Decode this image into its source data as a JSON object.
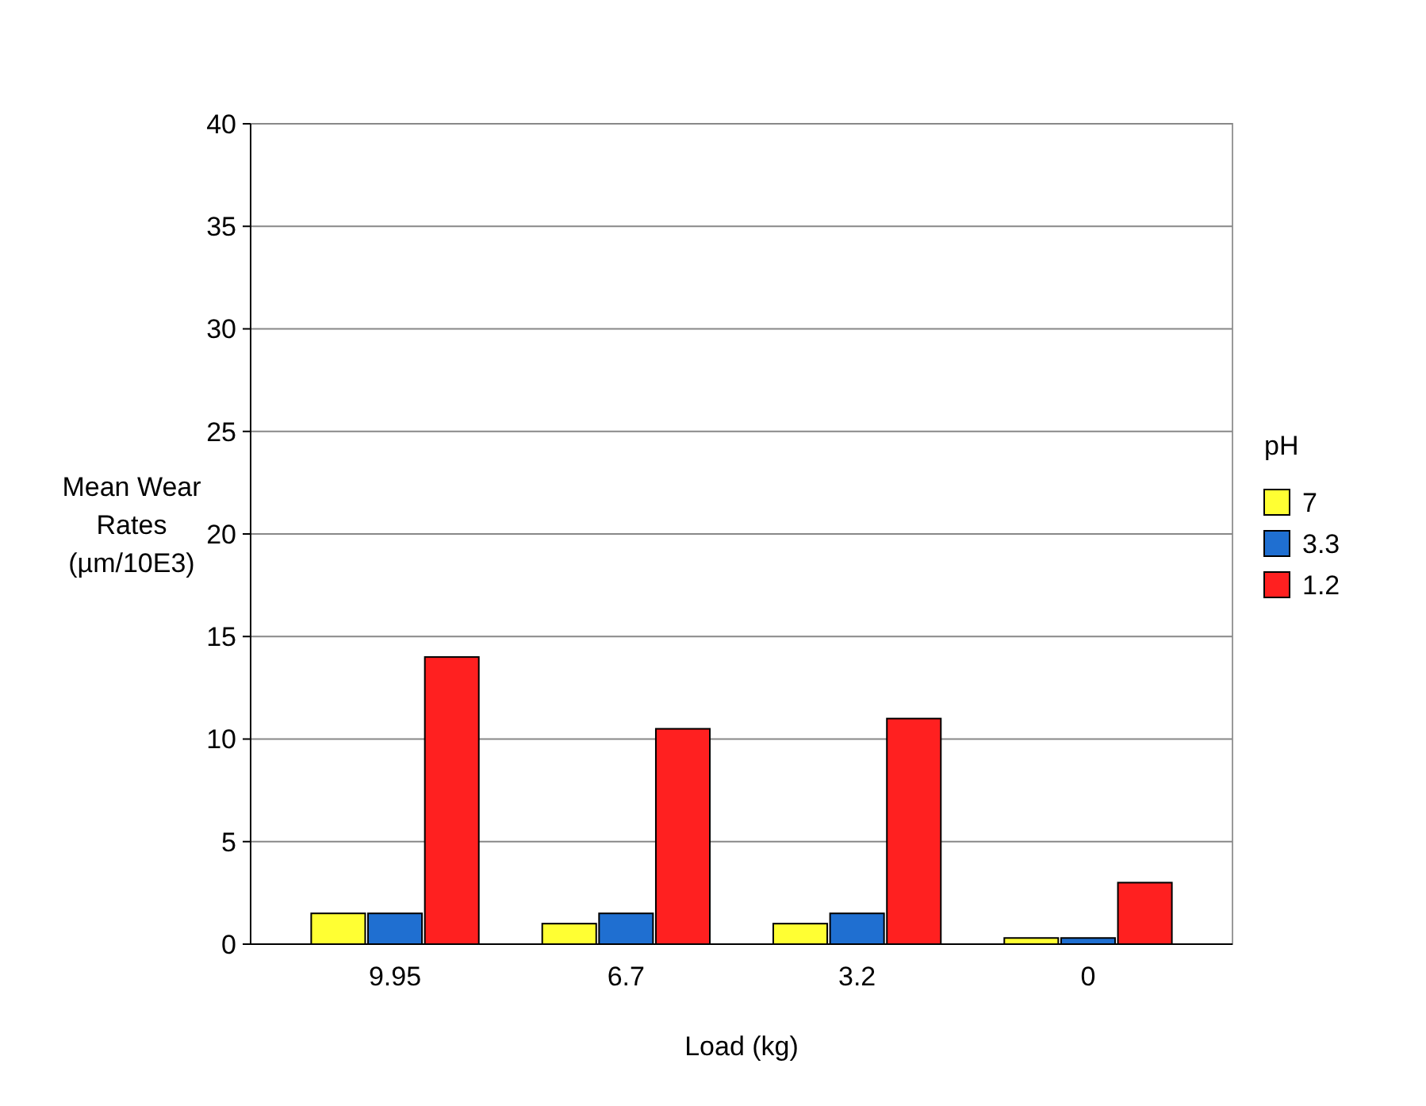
{
  "chart_data": {
    "type": "bar",
    "xlabel": "Load (kg)",
    "ylabel": "Mean Wear Rates (µm/10E3)",
    "legend_title": "pH",
    "categories": [
      "9.95",
      "6.7",
      "3.2",
      "0"
    ],
    "series": [
      {
        "name": "7",
        "color": "#ffff33",
        "values": [
          1.5,
          1,
          1,
          0.3
        ]
      },
      {
        "name": "3.3",
        "color": "#1f6fd1",
        "values": [
          1.5,
          1.5,
          1.5,
          0.3
        ]
      },
      {
        "name": "1.2",
        "color": "#ff2020",
        "values": [
          14,
          10.5,
          11,
          3
        ]
      }
    ],
    "ylim": [
      0,
      40
    ],
    "yticks": [
      0,
      5,
      10,
      15,
      20,
      25,
      30,
      35,
      40
    ],
    "grid": "y",
    "legend": "right"
  }
}
